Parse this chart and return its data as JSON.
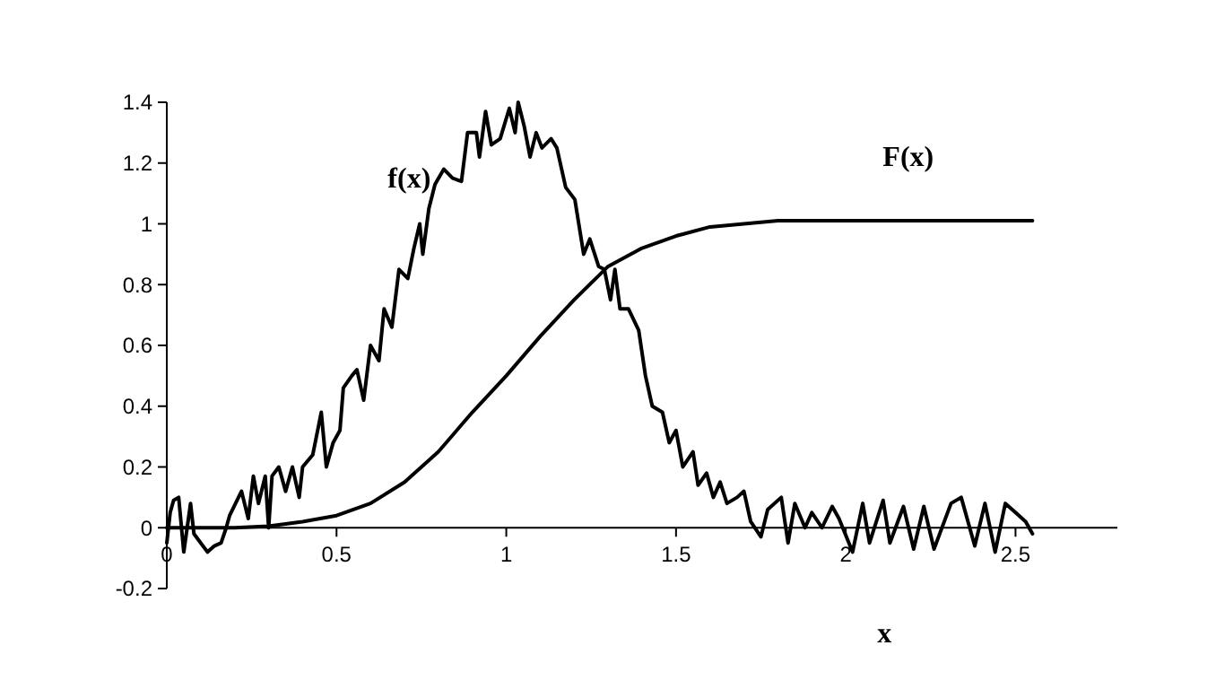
{
  "chart_data": {
    "type": "line",
    "xlabel": "x",
    "xlim": [
      0,
      2.8
    ],
    "ylim": [
      -0.2,
      1.4
    ],
    "xticks": [
      0,
      0.5,
      1,
      1.5,
      2,
      2.5
    ],
    "yticks": [
      -0.2,
      0,
      0.2,
      0.4,
      0.6,
      0.8,
      1,
      1.2,
      1.4
    ],
    "grid": false,
    "line_style": "solid",
    "series": [
      {
        "name": "f(x)",
        "color": "#000000",
        "x": [
          0,
          0.01,
          0.02,
          0.035,
          0.05,
          0.07,
          0.08,
          0.1,
          0.12,
          0.14,
          0.16,
          0.175,
          0.185,
          0.22,
          0.24,
          0.255,
          0.27,
          0.29,
          0.3,
          0.31,
          0.33,
          0.35,
          0.37,
          0.39,
          0.4,
          0.43,
          0.455,
          0.47,
          0.49,
          0.51,
          0.52,
          0.545,
          0.56,
          0.58,
          0.6,
          0.625,
          0.64,
          0.663,
          0.684,
          0.71,
          0.728,
          0.745,
          0.754,
          0.772,
          0.79,
          0.816,
          0.842,
          0.868,
          0.886,
          0.912,
          0.921,
          0.939,
          0.956,
          0.982,
          1.009,
          1.026,
          1.035,
          1.053,
          1.07,
          1.088,
          1.105,
          1.132,
          1.149,
          1.175,
          1.202,
          1.228,
          1.246,
          1.272,
          1.289,
          1.307,
          1.32,
          1.335,
          1.36,
          1.39,
          1.41,
          1.43,
          1.46,
          1.48,
          1.5,
          1.52,
          1.55,
          1.565,
          1.59,
          1.61,
          1.63,
          1.65,
          1.68,
          1.7,
          1.72,
          1.75,
          1.77,
          1.81,
          1.83,
          1.85,
          1.88,
          1.9,
          1.93,
          1.96,
          1.98,
          2.02,
          2.05,
          2.07,
          2.11,
          2.13,
          2.17,
          2.2,
          2.23,
          2.26,
          2.31,
          2.34,
          2.38,
          2.41,
          2.44,
          2.47,
          2.5,
          2.53,
          2.55
        ],
        "values": [
          -0.05,
          0.05,
          0.09,
          0.1,
          -0.08,
          0.08,
          -0.02,
          -0.05,
          -0.08,
          -0.06,
          -0.05,
          0,
          0.04,
          0.12,
          0.03,
          0.17,
          0.08,
          0.17,
          0,
          0.17,
          0.2,
          0.12,
          0.2,
          0.1,
          0.2,
          0.24,
          0.38,
          0.2,
          0.28,
          0.32,
          0.46,
          0.5,
          0.52,
          0.42,
          0.6,
          0.55,
          0.72,
          0.66,
          0.85,
          0.82,
          0.92,
          1,
          0.9,
          1.05,
          1.13,
          1.18,
          1.15,
          1.14,
          1.3,
          1.3,
          1.22,
          1.37,
          1.26,
          1.28,
          1.38,
          1.3,
          1.4,
          1.32,
          1.22,
          1.3,
          1.25,
          1.28,
          1.25,
          1.12,
          1.08,
          0.9,
          0.95,
          0.86,
          0.85,
          0.75,
          0.85,
          0.72,
          0.72,
          0.65,
          0.5,
          0.4,
          0.38,
          0.28,
          0.32,
          0.2,
          0.25,
          0.14,
          0.18,
          0.1,
          0.15,
          0.08,
          0.1,
          0.12,
          0.02,
          -0.03,
          0.06,
          0.1,
          -0.05,
          0.08,
          0,
          0.05,
          0,
          0.07,
          0.03,
          -0.08,
          0.08,
          -0.05,
          0.09,
          -0.05,
          0.07,
          -0.07,
          0.07,
          -0.07,
          0.08,
          0.1,
          -0.06,
          0.08,
          -0.08,
          0.08,
          0.05,
          0.02,
          -0.02
        ]
      },
      {
        "name": "F(x)",
        "color": "#000000",
        "x": [
          0,
          0.1,
          0.2,
          0.3,
          0.4,
          0.5,
          0.6,
          0.7,
          0.8,
          0.9,
          1,
          1.1,
          1.2,
          1.3,
          1.4,
          1.5,
          1.6,
          1.7,
          1.8,
          1.9,
          2,
          2.2,
          2.4,
          2.55
        ],
        "values": [
          0,
          0,
          0,
          0.005,
          0.02,
          0.04,
          0.08,
          0.15,
          0.25,
          0.38,
          0.5,
          0.63,
          0.75,
          0.86,
          0.92,
          0.96,
          0.99,
          1,
          1.01,
          1.01,
          1.01,
          1.01,
          1.01,
          1.01
        ]
      }
    ]
  }
}
